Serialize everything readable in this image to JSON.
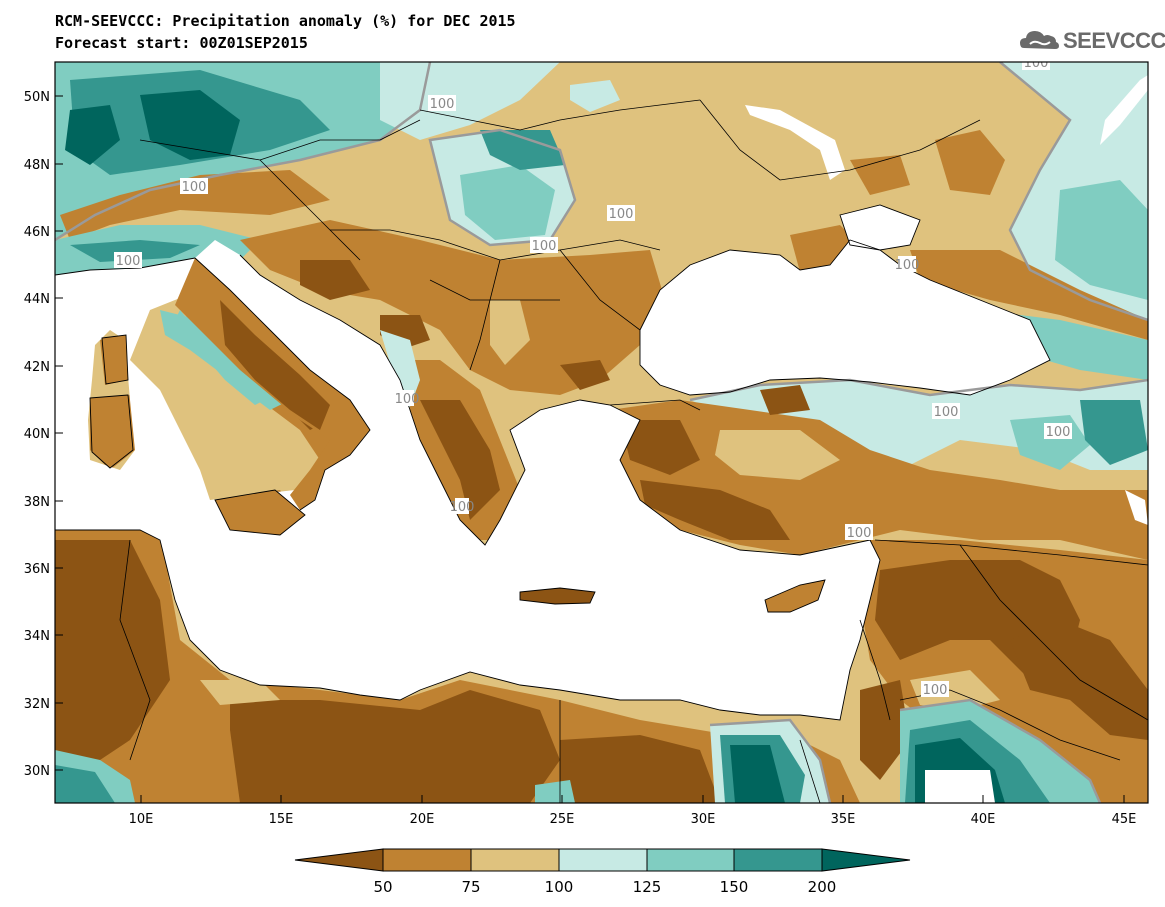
{
  "title": {
    "line1": "RCM-SEEVCCC: Precipitation anomaly (%) for DEC 2015",
    "line2": "Forecast start: 00Z01SEP2015"
  },
  "logo": {
    "text": "SEEVCCC",
    "icon": "cloud-icon"
  },
  "axes": {
    "lat_labels": [
      "50N",
      "48N",
      "46N",
      "44N",
      "42N",
      "40N",
      "38N",
      "36N",
      "34N",
      "32N",
      "30N"
    ],
    "lon_labels": [
      "10E",
      "15E",
      "20E",
      "25E",
      "30E",
      "35E",
      "40E",
      "45E"
    ]
  },
  "contour_labels": [
    "100",
    "100",
    "100",
    "100",
    "100",
    "100",
    "100",
    "100",
    "100",
    "100",
    "100",
    "100",
    "100"
  ],
  "colorbar": {
    "labels": [
      "50",
      "75",
      "100",
      "125",
      "150",
      "200"
    ],
    "colors": [
      "#8c5414",
      "#bf8232",
      "#dfc27e",
      "#c7eae4",
      "#80cdc1",
      "#35978f",
      "#00655d"
    ]
  },
  "palette": {
    "dry_extreme": "#8c5414",
    "dry": "#bf8232",
    "slightly_dry": "#dfc27e",
    "slightly_wet": "#c7eae4",
    "wet": "#80cdc1",
    "very_wet": "#35978f",
    "wet_extreme": "#00655d",
    "sea": "#ffffff"
  }
}
